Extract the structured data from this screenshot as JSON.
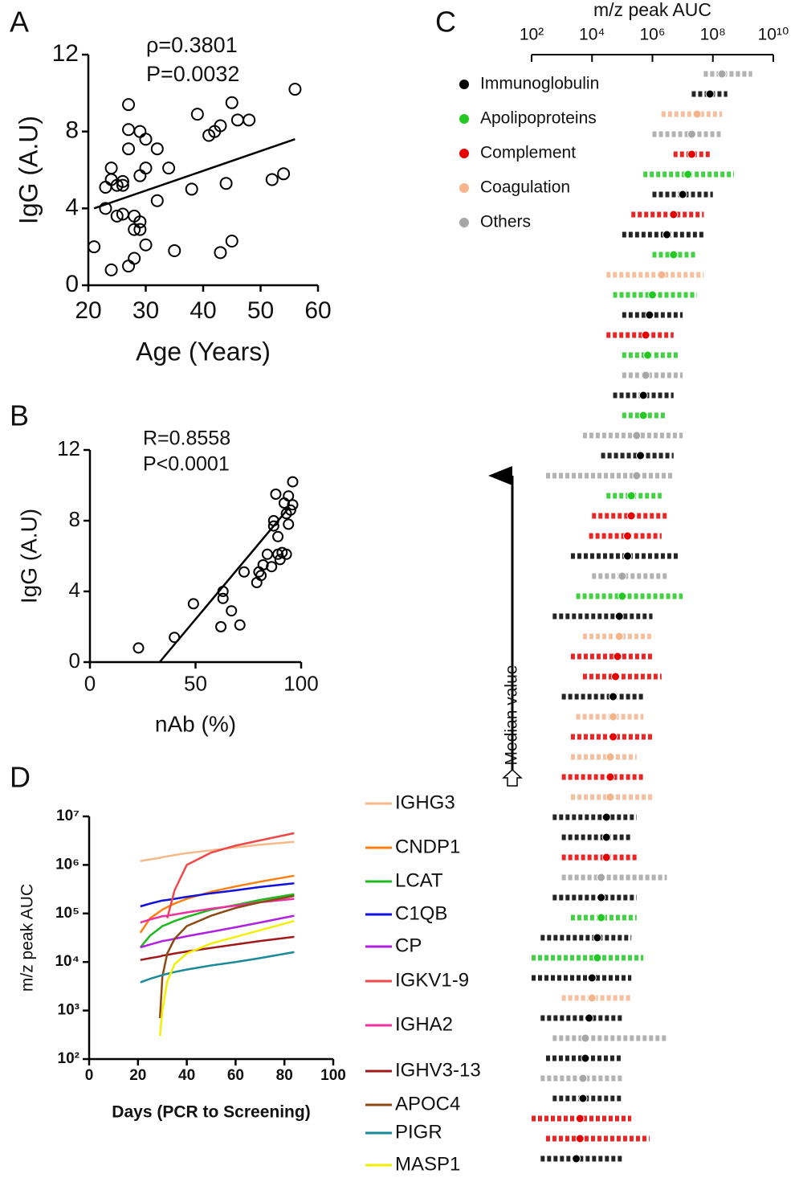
{
  "chart_data": [
    {
      "type": "scatter",
      "panel_label": "A",
      "xlabel": "Age (Years)",
      "ylabel": "IgG (A.U)",
      "annotations": [
        "ρ=0.3801",
        "P=0.0032"
      ],
      "x": [
        21,
        23,
        23,
        24,
        24,
        24,
        25,
        25,
        26,
        26,
        26,
        27,
        27,
        27,
        27,
        28,
        28,
        28,
        29,
        29,
        29,
        29,
        30,
        30,
        30,
        32,
        32,
        34,
        35,
        38,
        39,
        41,
        42,
        43,
        43,
        44,
        45,
        45,
        46,
        48,
        52,
        54,
        56
      ],
      "y": [
        2,
        5.1,
        4.0,
        6.1,
        5.5,
        0.8,
        5.2,
        3.6,
        5.4,
        5.2,
        3.7,
        9.4,
        8.1,
        7.1,
        1.0,
        3.6,
        2.9,
        1.4,
        8.0,
        5.7,
        3.3,
        2.9,
        7.6,
        6.1,
        2.1,
        7.1,
        4.4,
        6.1,
        1.8,
        5.0,
        8.9,
        7.8,
        8.0,
        8.3,
        1.7,
        5.3,
        9.5,
        2.3,
        8.6,
        8.6,
        5.5,
        5.8,
        10.2
      ],
      "fit": {
        "x": [
          21,
          56
        ],
        "y": [
          4.0,
          7.6
        ]
      },
      "xlim": [
        20,
        60
      ],
      "ylim": [
        0,
        12
      ],
      "xticks": [
        20,
        30,
        40,
        50,
        60
      ],
      "yticks": [
        0,
        4,
        8,
        12
      ]
    },
    {
      "type": "scatter",
      "panel_label": "B",
      "xlabel": "nAb (%)",
      "ylabel": "IgG (A.U)",
      "annotations": [
        "R=0.8558",
        "P<0.0001"
      ],
      "x": [
        23,
        40,
        49,
        62,
        63,
        63,
        67,
        71,
        73,
        79,
        80,
        81,
        82,
        84,
        86,
        87,
        87,
        88,
        89,
        89,
        90,
        91,
        92,
        93,
        93,
        94,
        94,
        95,
        96,
        96
      ],
      "y": [
        0.8,
        1.4,
        3.3,
        2.0,
        4.0,
        3.6,
        2.9,
        2.1,
        5.1,
        4.5,
        5.1,
        4.9,
        5.5,
        6.1,
        5.4,
        7.7,
        8.0,
        9.5,
        6.1,
        7.1,
        5.8,
        6.2,
        9.0,
        8.4,
        6.1,
        9.4,
        7.8,
        8.6,
        8.9,
        10.2
      ],
      "fit": {
        "x": [
          33,
          94
        ],
        "y": [
          0,
          8.7
        ]
      },
      "xlim": [
        0,
        100
      ],
      "ylim": [
        0,
        12
      ],
      "xticks": [
        0,
        50,
        100
      ],
      "yticks": [
        0,
        4,
        8,
        12
      ]
    },
    {
      "type": "dotrange",
      "panel_label": "C",
      "xlabel": "m/z peak AUC",
      "log_scale": true,
      "annotations": [
        "Median value"
      ],
      "xlim": [
        100,
        10000000000
      ],
      "xticks": [
        {
          "value": 100,
          "label": "10²"
        },
        {
          "value": 10000,
          "label": "10⁴"
        },
        {
          "value": 1000000,
          "label": "10⁶"
        },
        {
          "value": 100000000,
          "label": "10⁸"
        },
        {
          "value": 10000000000,
          "label": "10¹⁰"
        }
      ],
      "series": [
        {
          "name": "Immunoglobulin",
          "color": "#000000"
        },
        {
          "name": "Apolipoproteins",
          "color": "#22c922"
        },
        {
          "name": "Complement",
          "color": "#e60000"
        },
        {
          "name": "Coagulation",
          "color": "#f5b48c"
        },
        {
          "name": "Others",
          "color": "#a6a6a6"
        }
      ],
      "groups": [
        "Others",
        "Immunoglobulin",
        "Coagulation",
        "Others",
        "Complement",
        "Apolipoproteins",
        "Immunoglobulin",
        "Complement",
        "Immunoglobulin",
        "Apolipoproteins",
        "Coagulation",
        "Apolipoproteins",
        "Immunoglobulin",
        "Complement",
        "Apolipoproteins",
        "Others",
        "Immunoglobulin",
        "Apolipoproteins",
        "Others",
        "Immunoglobulin",
        "Others",
        "Apolipoproteins",
        "Complement",
        "Complement",
        "Immunoglobulin",
        "Others",
        "Apolipoproteins",
        "Immunoglobulin",
        "Coagulation",
        "Complement",
        "Complement",
        "Immunoglobulin",
        "Coagulation",
        "Complement",
        "Coagulation",
        "Complement",
        "Coagulation",
        "Immunoglobulin",
        "Immunoglobulin",
        "Complement",
        "Others",
        "Immunoglobulin",
        "Apolipoproteins",
        "Immunoglobulin",
        "Apolipoproteins",
        "Immunoglobulin",
        "Coagulation",
        "Immunoglobulin",
        "Others",
        "Immunoglobulin",
        "Others",
        "Immunoglobulin",
        "Complement",
        "Complement",
        "Immunoglobulin"
      ],
      "values": [
        200000000.0,
        80000000.0,
        30000000.0,
        20000000.0,
        20000000.0,
        15000000.0,
        10000000.0,
        5000000.0,
        3000000.0,
        5000000.0,
        2000000.0,
        1000000.0,
        800000.0,
        600000.0,
        700000.0,
        600000.0,
        500000.0,
        500000.0,
        300000.0,
        400000.0,
        300000.0,
        200000.0,
        200000.0,
        150000.0,
        150000.0,
        100000.0,
        100000.0,
        80000.0,
        80000.0,
        70000.0,
        60000.0,
        50000.0,
        50000.0,
        50000.0,
        40000.0,
        40000.0,
        40000.0,
        30000.0,
        30000.0,
        30000.0,
        20000.0,
        20000.0,
        20000.0,
        15000.0,
        15000.0,
        10000.0,
        10000.0,
        8000.0,
        6000.0,
        6000.0,
        5000.0,
        5000.0,
        4000.0,
        4000.0,
        3000.0
      ],
      "low": [
        50000000.0,
        20000000.0,
        2000000.0,
        1000000.0,
        5000000.0,
        500000.0,
        1000000.0,
        200000.0,
        100000.0,
        1000000.0,
        30000.0,
        50000.0,
        100000.0,
        30000.0,
        100000.0,
        100000.0,
        50000.0,
        100000.0,
        5000.0,
        20000.0,
        300.0,
        30000.0,
        10000.0,
        8000.0,
        2000.0,
        10000.0,
        3000.0,
        500.0,
        5000.0,
        2000.0,
        5000.0,
        1000.0,
        3000.0,
        2000.0,
        2000.0,
        1000.0,
        2000.0,
        500.0,
        1000.0,
        1000.0,
        1000.0,
        500.0,
        2000.0,
        200.0,
        100.0,
        100.0,
        1000.0,
        200.0,
        500.0,
        300.0,
        200.0,
        500.0,
        100.0,
        300.0,
        200.0
      ],
      "high": [
        2000000000.0,
        300000000.0,
        200000000.0,
        200000000.0,
        80000000.0,
        500000000.0,
        100000000.0,
        50000000.0,
        50000000.0,
        30000000.0,
        50000000.0,
        30000000.0,
        10000000.0,
        5000000.0,
        8000000.0,
        10000000.0,
        5000000.0,
        3000000.0,
        10000000.0,
        5000000.0,
        5000000.0,
        2000000.0,
        3000000.0,
        2000000.0,
        8000000.0,
        3000000.0,
        10000000.0,
        1000000.0,
        1000000.0,
        1000000.0,
        2000000.0,
        500000.0,
        500000.0,
        1000000.0,
        300000.0,
        500000.0,
        1000000.0,
        300000.0,
        200000.0,
        300000.0,
        3000000.0,
        300000.0,
        300000.0,
        200000.0,
        500000.0,
        200000.0,
        200000.0,
        100000.0,
        3000000.0,
        100000.0,
        100000.0,
        100000.0,
        200000.0,
        800000.0,
        100000.0
      ]
    },
    {
      "type": "line",
      "panel_label": "D",
      "xlabel": "Days (PCR to Screening)",
      "ylabel": "m/z peak AUC",
      "log_scale": true,
      "x": [
        21,
        25,
        29,
        30,
        32,
        35,
        40,
        50,
        60,
        70,
        84
      ],
      "xlim": [
        0,
        100
      ],
      "xticks": [
        0,
        20,
        40,
        60,
        80,
        100
      ],
      "ylim": [
        100,
        10000000
      ],
      "yticks": [
        {
          "value": 100,
          "label": "10²"
        },
        {
          "value": 1000,
          "label": "10³"
        },
        {
          "value": 10000,
          "label": "10⁴"
        },
        {
          "value": 100000,
          "label": "10⁵"
        },
        {
          "value": 1000000,
          "label": "10⁶"
        },
        {
          "value": 10000000,
          "label": "10⁷"
        }
      ],
      "series": [
        {
          "name": "IGHG3",
          "color": "#f5b98a",
          "values": [
            1200000.0,
            1300000.0,
            1400000.0,
            1450000.0,
            1500000.0,
            1600000.0,
            1750000.0,
            2000000.0,
            2300000.0,
            2600000.0,
            3000000.0
          ]
        },
        {
          "name": "CNDP1",
          "color": "#ff7f0e",
          "values": [
            40000.0,
            80000.0,
            110000.0,
            120000.0,
            135000.0,
            160000.0,
            200000.0,
            280000.0,
            360000.0,
            450000.0,
            600000.0
          ]
        },
        {
          "name": "LCAT",
          "color": "#1fb81f",
          "values": [
            20000.0,
            35000.0,
            50000.0,
            55000.0,
            60000.0,
            70000.0,
            85000.0,
            120000.0,
            150000.0,
            190000.0,
            250000.0
          ]
        },
        {
          "name": "C1QB",
          "color": "#1010e0",
          "values": [
            140000.0,
            160000.0,
            180000.0,
            185000.0,
            190000.0,
            200000.0,
            220000.0,
            260000.0,
            300000.0,
            350000.0,
            420000.0
          ]
        },
        {
          "name": "CP",
          "color": "#b020e0",
          "values": [
            20000.0,
            23000.0,
            26000.0,
            27000.0,
            28000.0,
            30000.0,
            34000.0,
            42000.0,
            52000.0,
            65000.0,
            90000.0
          ]
        },
        {
          "name": "IGKV1-9",
          "color": "#f04848",
          "values": [
            null,
            null,
            null,
            null,
            80000.0,
            300000.0,
            1000000.0,
            1800000.0,
            2500000.0,
            3200000.0,
            4500000.0
          ]
        },
        {
          "name": "IGHA2",
          "color": "#f030a0",
          "values": [
            65000.0,
            75000.0,
            85000.0,
            88000.0,
            90000.0,
            95000.0,
            105000.0,
            125000.0,
            145000.0,
            170000.0,
            200000.0
          ]
        },
        {
          "name": "IGHV3-13",
          "color": "#a01818",
          "values": [
            11000.0,
            12000.0,
            13000.0,
            13500.0,
            14000.0,
            15000.0,
            16500.0,
            19500.0,
            23000.0,
            27000.0,
            33000.0
          ]
        },
        {
          "name": "APOC4",
          "color": "#8b4a14",
          "values": [
            null,
            null,
            700.0,
            5000.0,
            15000.0,
            30000.0,
            55000.0,
            90000.0,
            130000.0,
            170000.0,
            230000.0
          ]
        },
        {
          "name": "PIGR",
          "color": "#1a8a9a",
          "values": [
            3800.0,
            4500.0,
            5200.0,
            5400.0,
            5700.0,
            6200.0,
            7000.0,
            8500.0,
            10000.0,
            12000.0,
            16000.0
          ]
        },
        {
          "name": "MASP1",
          "color": "#f0f000",
          "values": [
            null,
            null,
            300.0,
            1000.0,
            4000.0,
            9000.0,
            15000.0,
            24000.0,
            33000.0,
            45000.0,
            70000.0
          ]
        }
      ]
    }
  ]
}
